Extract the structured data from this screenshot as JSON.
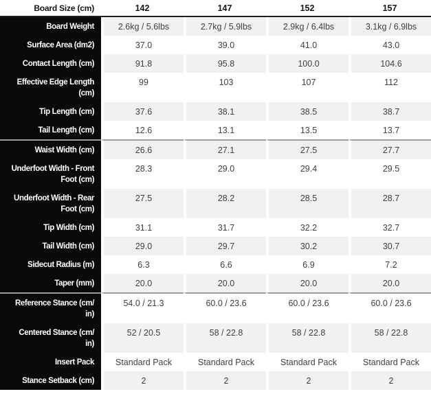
{
  "colors": {
    "label_bg": "#0a0a0a",
    "label_text": "#ffffff",
    "row_shaded": "#f1f1f1",
    "row_plain": "#ffffff",
    "value_text": "#3f3f3f",
    "header_text": "#141414",
    "divider": "#9d9d9d",
    "header_border": "#1e1e1e"
  },
  "chart_data": {
    "type": "table",
    "header_label": "Board Size (cm)",
    "sizes": [
      "142",
      "147",
      "152",
      "157"
    ],
    "rows": [
      {
        "label": "Board Weight",
        "values": [
          "2.6kg / 5.6lbs",
          "2.7kg / 5.9lbs",
          "2.9kg / 6.4lbs",
          "3.1kg / 6.9lbs"
        ]
      },
      {
        "label": "Surface Area (dm2)",
        "values": [
          "37.0",
          "39.0",
          "41.0",
          "43.0"
        ]
      },
      {
        "label": "Contact Length (cm)",
        "values": [
          "91.8",
          "95.8",
          "100.0",
          "104.6"
        ]
      },
      {
        "label": "Effective Edge Length\n(cm)",
        "values": [
          "99",
          "103",
          "107",
          "112"
        ]
      },
      {
        "label": "Tip Length (cm)",
        "values": [
          "37.6",
          "38.1",
          "38.5",
          "38.7"
        ]
      },
      {
        "label": "Tail Length (cm)",
        "values": [
          "12.6",
          "13.1",
          "13.5",
          "13.7"
        ]
      },
      {
        "label": "Waist Width (cm)",
        "values": [
          "26.6",
          "27.1",
          "27.5",
          "27.7"
        ],
        "section_break": true
      },
      {
        "label": "Underfoot Width - Front\nFoot (cm)",
        "values": [
          "28.3",
          "29.0",
          "29.4",
          "29.5"
        ]
      },
      {
        "label": "Underfoot Width - Rear\nFoot (cm)",
        "values": [
          "27.5",
          "28.2",
          "28.5",
          "28.7"
        ]
      },
      {
        "label": "Tip Width (cm)",
        "values": [
          "31.1",
          "31.7",
          "32.2",
          "32.7"
        ]
      },
      {
        "label": "Tail Width (cm)",
        "values": [
          "29.0",
          "29.7",
          "30.2",
          "30.7"
        ]
      },
      {
        "label": "Sidecut Radius (m)",
        "values": [
          "6.3",
          "6.6",
          "6.9",
          "7.2"
        ]
      },
      {
        "label": "Taper (mm)",
        "values": [
          "20.0",
          "20.0",
          "20.0",
          "20.0"
        ]
      },
      {
        "label": "Reference Stance (cm/\nin)",
        "values": [
          "54.0 / 21.3",
          "60.0 / 23.6",
          "60.0 / 23.6",
          "60.0 / 23.6"
        ],
        "section_break": true
      },
      {
        "label": "Centered Stance (cm/\nin)",
        "values": [
          "52 / 20.5",
          "58 / 22.8",
          "58 / 22.8",
          "58 / 22.8"
        ]
      },
      {
        "label": "Insert Pack",
        "values": [
          "Standard Pack",
          "Standard Pack",
          "Standard Pack",
          "Standard Pack"
        ]
      },
      {
        "label": "Stance Setback (cm)",
        "values": [
          "2",
          "2",
          "2",
          "2"
        ]
      }
    ]
  }
}
